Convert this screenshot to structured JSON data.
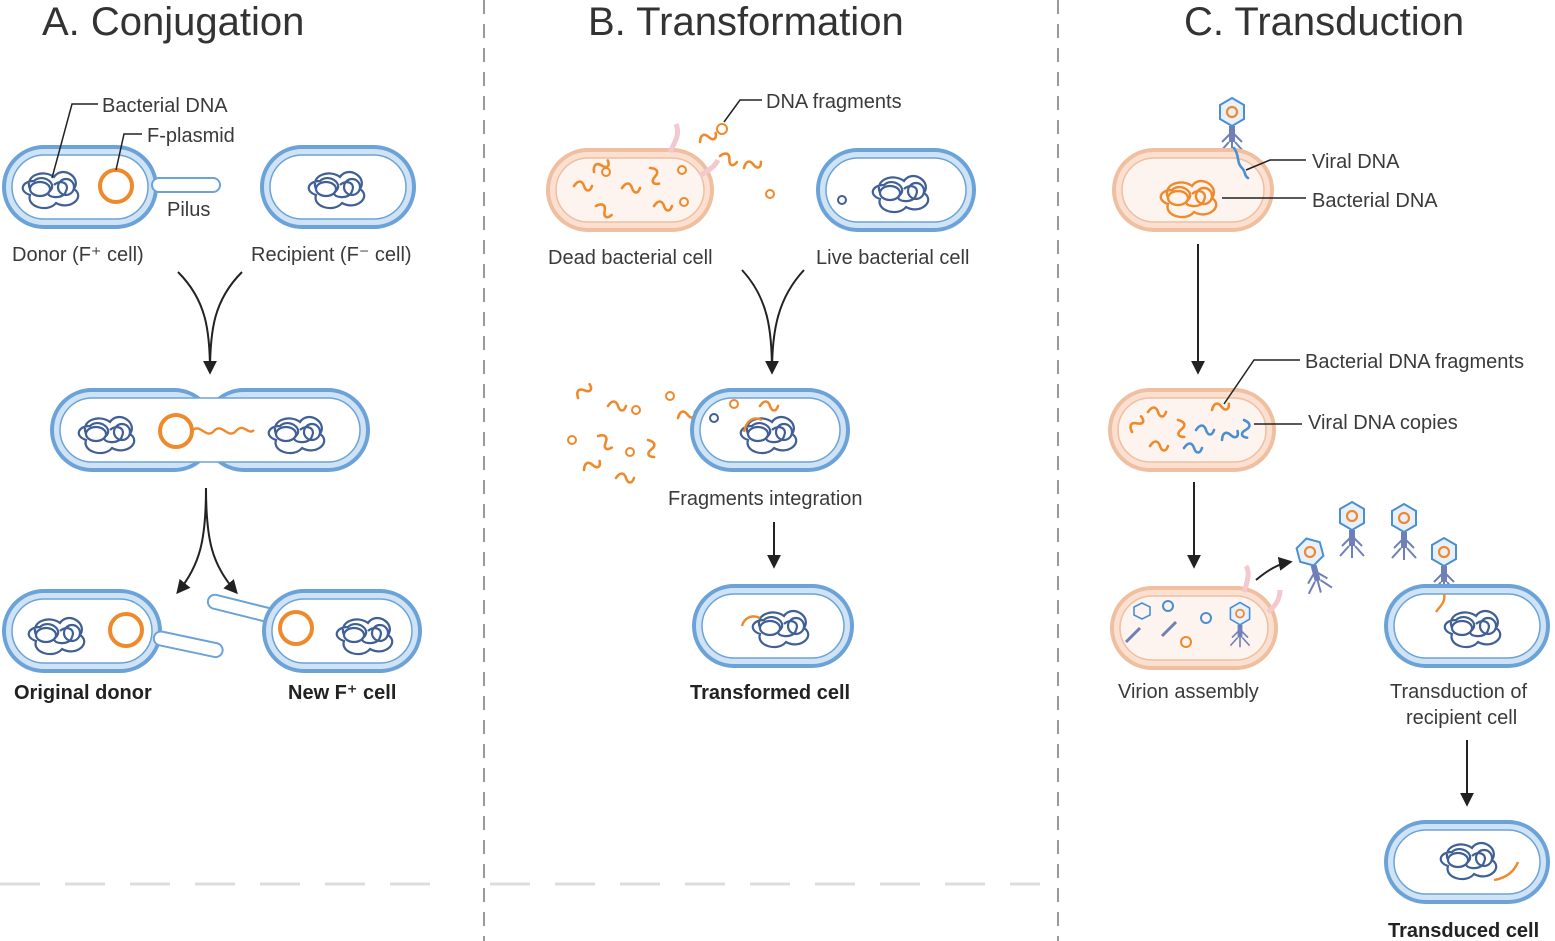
{
  "panels": {
    "conjugation": {
      "title": "A. Conjugation",
      "bacterial_dna": "Bacterial DNA",
      "f_plasmid": "F-plasmid",
      "pilus": "Pilus",
      "donor": "Donor (F⁺ cell)",
      "recipient": "Recipient (F⁻ cell)",
      "original_donor": "Original donor",
      "new_f_cell": "New F⁺ cell"
    },
    "transformation": {
      "title": "B. Transformation",
      "dna_fragments": "DNA fragments",
      "dead_cell": "Dead bacterial cell",
      "live_cell": "Live bacterial cell",
      "integration": "Fragments integration",
      "transformed": "Transformed cell"
    },
    "transduction": {
      "title": "C. Transduction",
      "viral_dna": "Viral DNA",
      "bacterial_dna": "Bacterial DNA",
      "bacterial_fragments": "Bacterial DNA fragments",
      "viral_copies": "Viral DNA copies",
      "virion_assembly": "Virion assembly",
      "transduction_line1": "Transduction of",
      "transduction_line2": "recipient cell",
      "transduced": "Transduced cell"
    }
  },
  "colors": {
    "cell_blue": "#6ba3d8",
    "cell_pink": "#efbf9f",
    "dna_blue": "#3f5f95",
    "dna_orange": "#ef8a2c"
  }
}
